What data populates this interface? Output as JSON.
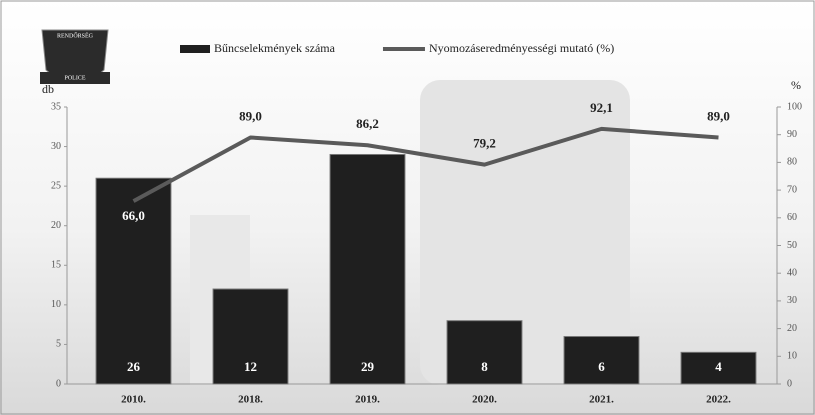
{
  "chart_data": {
    "type": "bar",
    "logo": {
      "top": "RENDŐRSÉG",
      "bottom": "POLICE"
    },
    "y_label": "db",
    "y2_label": "%",
    "categories": [
      "2010.",
      "2018.",
      "2019.",
      "2020.",
      "2021.",
      "2022."
    ],
    "series": [
      {
        "name": "Bűncselekmények száma",
        "type": "bar",
        "color": "#1f1f1f",
        "values": [
          26,
          12,
          29,
          8,
          6,
          4
        ]
      },
      {
        "name": "Nyomozáseredményességi mutató (%)",
        "type": "line",
        "axis": "y2",
        "color": "#5a5a5a",
        "values": [
          66.0,
          89.0,
          86.2,
          79.2,
          92.1,
          89.0
        ],
        "value_labels": [
          "66,0",
          "89,0",
          "86,2",
          "79,2",
          "92,1",
          "89,0"
        ]
      }
    ],
    "ylim": [
      0,
      35
    ],
    "yticks": [
      0,
      5,
      10,
      15,
      20,
      25,
      30,
      35
    ],
    "y2lim": [
      0,
      100
    ],
    "y2ticks": [
      0,
      10,
      20,
      30,
      40,
      50,
      60,
      70,
      80,
      90,
      100
    ],
    "legend": "top"
  }
}
